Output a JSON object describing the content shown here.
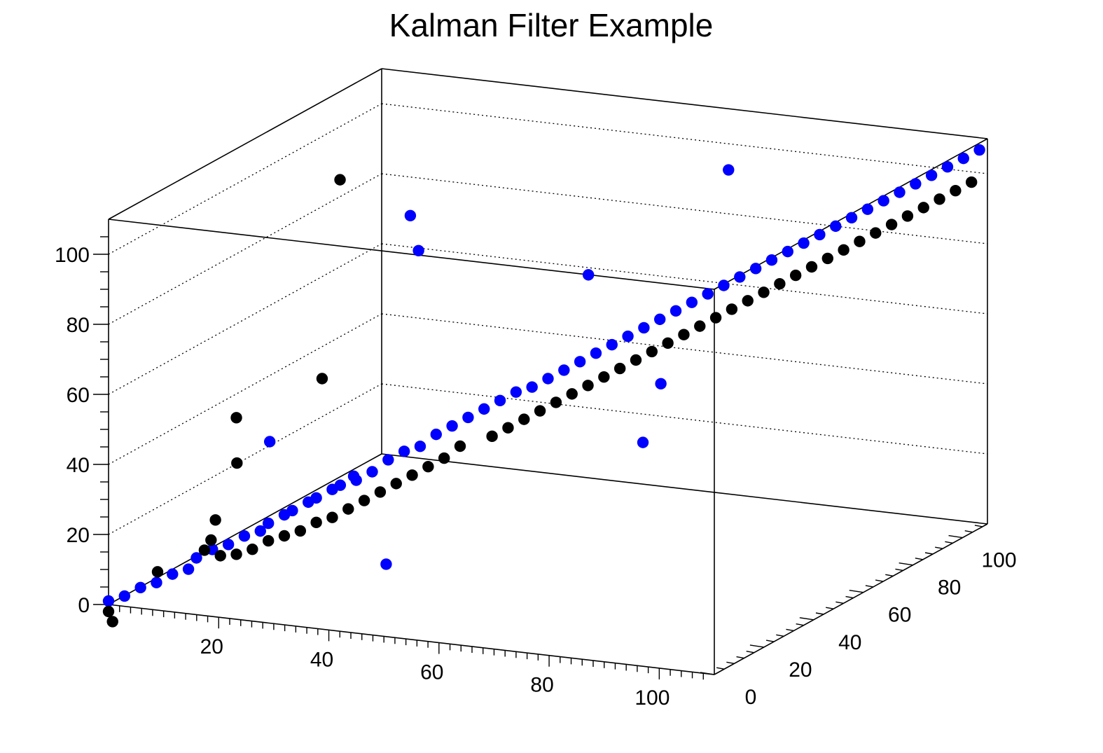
{
  "chart_data": {
    "type": "scatter",
    "title": "Kalman Filter Example",
    "xlim": [
      0,
      110
    ],
    "ylim": [
      0,
      110
    ],
    "zlim": [
      0,
      110
    ],
    "x_ticks": [
      "20",
      "40",
      "60",
      "80",
      "100"
    ],
    "y_ticks": [
      "0",
      "20",
      "40",
      "60",
      "80",
      "100"
    ],
    "z_ticks": [
      "0",
      "20",
      "40",
      "60",
      "80",
      "100"
    ],
    "grid": true,
    "legend": "none",
    "series": [
      {
        "color": "#0000ff",
        "points": [
          [
            0,
            0,
            1
          ],
          [
            2,
            2,
            2
          ],
          [
            4,
            4,
            4
          ],
          [
            6,
            6,
            5
          ],
          [
            8,
            8,
            7
          ],
          [
            10,
            10,
            8
          ],
          [
            11,
            11,
            11
          ],
          [
            13,
            13,
            13
          ],
          [
            15,
            15,
            14
          ],
          [
            17,
            17,
            16
          ],
          [
            19,
            19,
            17
          ],
          [
            20,
            20,
            19
          ],
          [
            22,
            22,
            21
          ],
          [
            23,
            23,
            22
          ],
          [
            25,
            25,
            24
          ],
          [
            26,
            26,
            25
          ],
          [
            28,
            28,
            27
          ],
          [
            29,
            29,
            28
          ],
          [
            31,
            31,
            29
          ],
          [
            33,
            33,
            31
          ],
          [
            35,
            35,
            34
          ],
          [
            37,
            37,
            36
          ],
          [
            39,
            39,
            37
          ],
          [
            41,
            41,
            40
          ],
          [
            43,
            43,
            42
          ],
          [
            45,
            45,
            44
          ],
          [
            47,
            47,
            46
          ],
          [
            49,
            49,
            48
          ],
          [
            51,
            51,
            50
          ],
          [
            53,
            53,
            51
          ],
          [
            55,
            55,
            53
          ],
          [
            57,
            57,
            55
          ],
          [
            59,
            59,
            57
          ],
          [
            61,
            61,
            59
          ],
          [
            63,
            63,
            61
          ],
          [
            65,
            65,
            63
          ],
          [
            67,
            67,
            65
          ],
          [
            69,
            69,
            67
          ],
          [
            71,
            71,
            69
          ],
          [
            73,
            73,
            71
          ],
          [
            75,
            75,
            73
          ],
          [
            77,
            77,
            75
          ],
          [
            79,
            79,
            77
          ],
          [
            81,
            81,
            79
          ],
          [
            83,
            83,
            81
          ],
          [
            85,
            85,
            83
          ],
          [
            87,
            87,
            85
          ],
          [
            89,
            89,
            87
          ],
          [
            91,
            91,
            89
          ],
          [
            93,
            93,
            91
          ],
          [
            95,
            95,
            93
          ],
          [
            97,
            97,
            95
          ],
          [
            99,
            99,
            97
          ],
          [
            101,
            101,
            99
          ],
          [
            103,
            103,
            101
          ],
          [
            105,
            105,
            103
          ],
          [
            107,
            107,
            105
          ],
          [
            109,
            109,
            107
          ],
          [
            36,
            45,
            90
          ],
          [
            30,
            55,
            95
          ],
          [
            40,
            10,
            40
          ],
          [
            45,
            12,
            15
          ],
          [
            70,
            38,
            92
          ],
          [
            80,
            45,
            60
          ],
          [
            79,
            40,
            45
          ],
          [
            72,
            90,
            102
          ],
          [
            18,
            25,
            40
          ]
        ]
      },
      {
        "color": "#000000",
        "points": [
          [
            0,
            0,
            -2
          ],
          [
            0.5,
            0.5,
            -5
          ],
          [
            12,
            12,
            13
          ],
          [
            14,
            14,
            11
          ],
          [
            16,
            16,
            11
          ],
          [
            18,
            18,
            12
          ],
          [
            20,
            20,
            14
          ],
          [
            22,
            22,
            15
          ],
          [
            24,
            24,
            16
          ],
          [
            26,
            26,
            18
          ],
          [
            28,
            28,
            19
          ],
          [
            30,
            30,
            21
          ],
          [
            32,
            32,
            23
          ],
          [
            34,
            34,
            25
          ],
          [
            36,
            36,
            27
          ],
          [
            38,
            38,
            29
          ],
          [
            40,
            40,
            31
          ],
          [
            42,
            42,
            33
          ],
          [
            44,
            44,
            36
          ],
          [
            48,
            48,
            38
          ],
          [
            50,
            50,
            40
          ],
          [
            52,
            52,
            42
          ],
          [
            54,
            54,
            44
          ],
          [
            56,
            56,
            46
          ],
          [
            58,
            58,
            48
          ],
          [
            60,
            60,
            50
          ],
          [
            62,
            62,
            52
          ],
          [
            64,
            64,
            54
          ],
          [
            66,
            66,
            56
          ],
          [
            68,
            68,
            58
          ],
          [
            70,
            70,
            60
          ],
          [
            72,
            72,
            62
          ],
          [
            74,
            74,
            64
          ],
          [
            76,
            76,
            66
          ],
          [
            78,
            78,
            68
          ],
          [
            80,
            80,
            70
          ],
          [
            82,
            82,
            72
          ],
          [
            84,
            84,
            74
          ],
          [
            86,
            86,
            76
          ],
          [
            88,
            88,
            78
          ],
          [
            90,
            90,
            80
          ],
          [
            92,
            92,
            82
          ],
          [
            94,
            94,
            84
          ],
          [
            96,
            96,
            86
          ],
          [
            98,
            98,
            88
          ],
          [
            100,
            100,
            90
          ],
          [
            102,
            102,
            92
          ],
          [
            104,
            104,
            94
          ],
          [
            106,
            106,
            96
          ],
          [
            108,
            108,
            98
          ],
          [
            8,
            2,
            10
          ],
          [
            14,
            12,
            22
          ],
          [
            15,
            8,
            18
          ],
          [
            23,
            35,
            55
          ],
          [
            16,
            16,
            50
          ],
          [
            17,
            14,
            38
          ],
          [
            24,
            40,
            110
          ]
        ]
      }
    ]
  }
}
